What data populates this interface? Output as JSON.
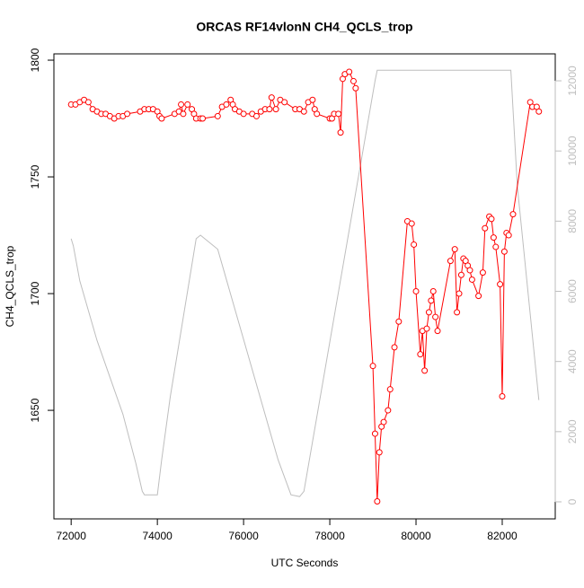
{
  "chart_data": {
    "type": "line",
    "title": "ORCAS RF14vlonN CH4_QCLS_trop",
    "x_label": "UTC Seconds",
    "y_label": "CH4_QCLS_trop",
    "xlim": [
      71600,
      83230
    ],
    "xticks": [
      72000,
      74000,
      76000,
      78000,
      80000,
      82000
    ],
    "ylim": [
      1603.5,
      1802.7
    ],
    "yticks": [
      1650,
      1700,
      1750,
      1800
    ],
    "y2lim": [
      -486,
      12768
    ],
    "y2ticks": [
      0,
      2000,
      4000,
      6000,
      8000,
      10000,
      12000
    ],
    "series": [
      {
        "color": "#ff0000",
        "markers": true,
        "x": [
          72000,
          72100,
          72200,
          72300,
          72400,
          72500,
          72600,
          72700,
          72800,
          72900,
          73000,
          73100,
          73200,
          73300,
          73600,
          73700,
          73800,
          73900,
          74000,
          74050,
          74100,
          74400,
          74500,
          74550,
          74600,
          74700,
          74800,
          74850,
          74900,
          75000,
          75050,
          75400,
          75500,
          75600,
          75700,
          75750,
          75800,
          75900,
          76000,
          76200,
          76300,
          76400,
          76500,
          76600,
          76650,
          76750,
          76850,
          76950,
          77200,
          77300,
          77400,
          77500,
          77600,
          77650,
          77700,
          78000,
          78050,
          78100,
          78200,
          78250,
          78300,
          78350,
          78450,
          78550,
          78600,
          79000,
          79050,
          79100,
          79150,
          79200,
          79250,
          79350,
          79400,
          79500,
          79600,
          79800,
          79900,
          79950,
          80000,
          80100,
          80150,
          80200,
          80250,
          80300,
          80350,
          80400,
          80450,
          80500,
          80800,
          80900,
          80950,
          81000,
          81050,
          81100,
          81150,
          81200,
          81250,
          81300,
          81450,
          81550,
          81600,
          81700,
          81750,
          81800,
          81850,
          81950,
          82000,
          82050,
          82100,
          82150,
          82250,
          82650,
          82700,
          82800,
          82850
        ],
        "values": [
          1781,
          1781,
          1782,
          1783,
          1782,
          1779,
          1778,
          1777,
          1777,
          1776,
          1775,
          1776,
          1776,
          1777,
          1778,
          1779,
          1779,
          1779,
          1778,
          1776,
          1775,
          1777,
          1778,
          1781,
          1777,
          1781,
          1779,
          1777,
          1775,
          1775,
          1775,
          1776,
          1780,
          1781,
          1783,
          1781,
          1779,
          1778,
          1777,
          1777,
          1776,
          1778,
          1779,
          1779,
          1784,
          1779,
          1783,
          1782,
          1779,
          1779,
          1778,
          1782,
          1783,
          1779,
          1777,
          1775,
          1775,
          1777,
          1777,
          1769,
          1792,
          1794,
          1795,
          1791,
          1788,
          1669,
          1640,
          1611,
          1632,
          1643,
          1645,
          1650,
          1659,
          1677,
          1688,
          1731,
          1730,
          1721,
          1701,
          1674,
          1684,
          1667,
          1685,
          1692,
          1697,
          1701,
          1690,
          1684,
          1714,
          1719,
          1692,
          1700,
          1708,
          1715,
          1714,
          1712,
          1710,
          1706,
          1699,
          1709,
          1728,
          1733,
          1732,
          1724,
          1720,
          1704,
          1656,
          1718,
          1726,
          1725,
          1734,
          1782,
          1780,
          1780,
          1778
        ]
      },
      {
        "color": "#bebebe",
        "axis": "y2",
        "markers": false,
        "x": [
          72000,
          72050,
          72200,
          72600,
          73200,
          73500,
          73650,
          73700,
          74000,
          74100,
          74300,
          74900,
          75000,
          75400,
          76800,
          77100,
          77300,
          77400,
          79050,
          79100,
          82200,
          82350,
          82850
        ],
        "values": [
          7500,
          7300,
          6300,
          4600,
          2500,
          1100,
          300,
          200,
          200,
          1200,
          3000,
          7500,
          7600,
          7200,
          1200,
          200,
          150,
          300,
          12000,
          12300,
          12300,
          9000,
          2900
        ]
      }
    ]
  }
}
